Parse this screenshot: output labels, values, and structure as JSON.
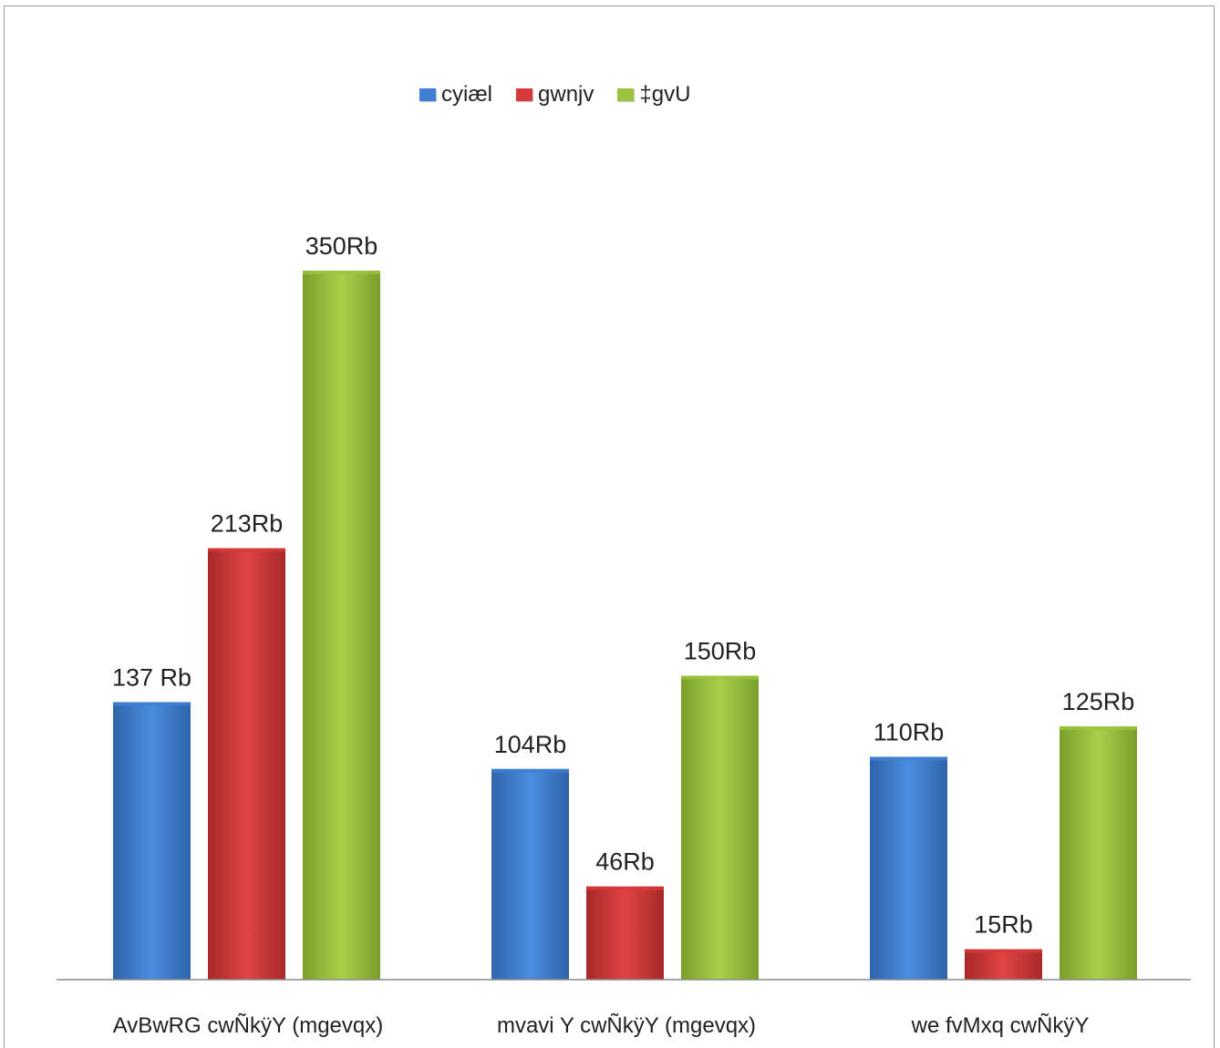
{
  "chart_data": {
    "type": "bar",
    "categories": [
      "AvBwRG cwÑkÿY (mgevqx)",
      "mvavi Y cwÑkÿY (mgevqx)",
      "we fvMxq cwÑkÿY"
    ],
    "series": [
      {
        "name": "cyiæl",
        "color": "#3f7fd4",
        "values": [
          137,
          104,
          110
        ],
        "labels": [
          "137 Rb",
          "104Rb",
          "110Rb"
        ]
      },
      {
        "name": "gwnjv",
        "color": "#d63a3a",
        "values": [
          213,
          46,
          15
        ],
        "labels": [
          "213Rb",
          "46Rb",
          "15Rb"
        ]
      },
      {
        "name": "‡gvU",
        "color": "#9bc43e",
        "values": [
          350,
          150,
          125
        ],
        "labels": [
          "350Rb",
          "150Rb",
          "125Rb"
        ]
      }
    ],
    "legend_position": "top-center",
    "grid": false
  }
}
